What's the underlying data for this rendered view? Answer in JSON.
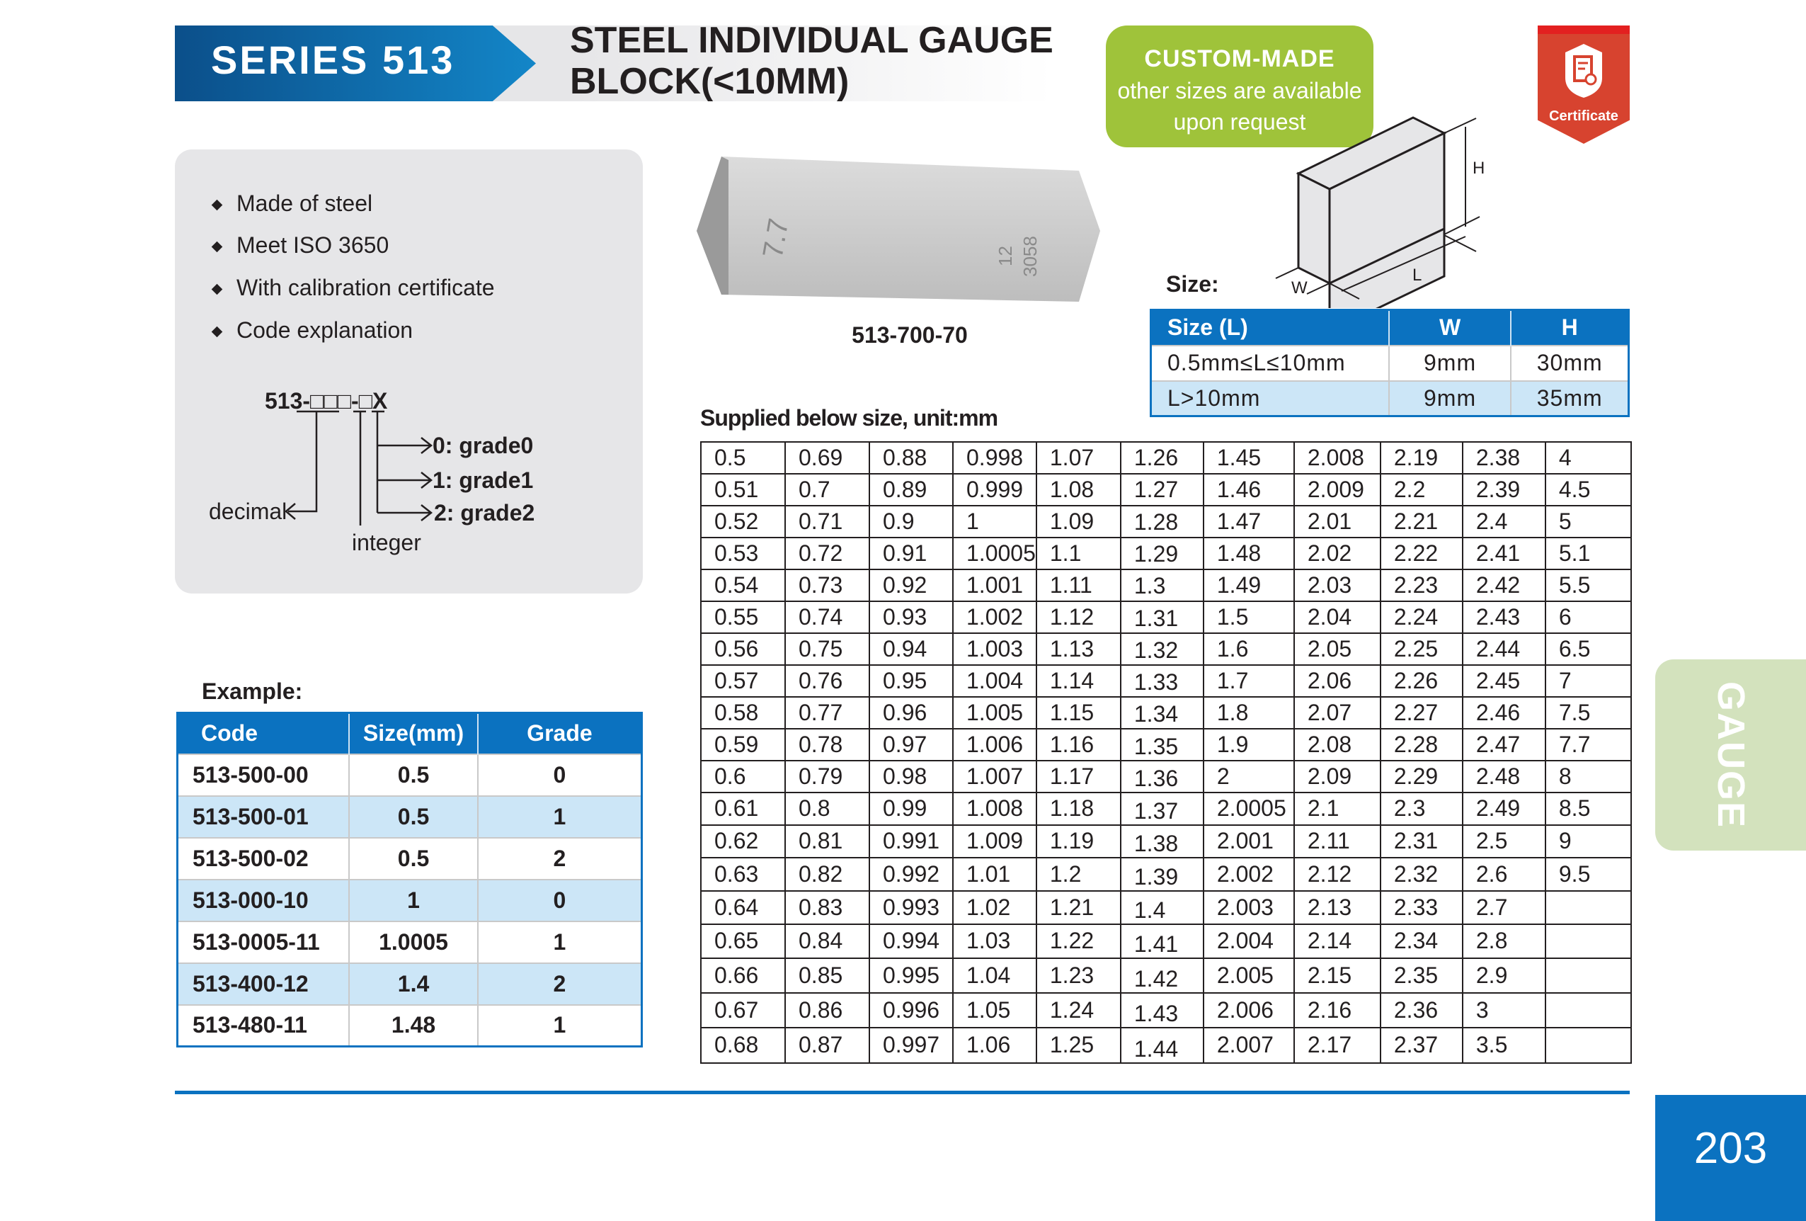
{
  "header": {
    "series": "SERIES 513",
    "title_line1": "STEEL INDIVIDUAL GAUGE",
    "title_line2": "BLOCK(<10MM)",
    "custom_title": "CUSTOM-MADE",
    "custom_line1": "other sizes are available",
    "custom_line2": "upon request",
    "certificate_label": "Certificate"
  },
  "features": {
    "items": [
      "Made of steel",
      "Meet ISO 3650",
      "With calibration certificate",
      "Code explanation"
    ],
    "code": {
      "prefix": "513-",
      "boxes3": "□□□",
      "dash": "-",
      "box1": "□",
      "x": "X",
      "decimal": "decimal",
      "integer": "integer",
      "grades": [
        "0: grade0",
        "1: grade1",
        "2: grade2"
      ]
    }
  },
  "photo": {
    "caption": "513-700-70",
    "engraving_1": "7.7",
    "engraving_2": "12",
    "engraving_3": "3058"
  },
  "size": {
    "label": "Size:",
    "dims": {
      "w": "W",
      "l": "L",
      "h": "H"
    },
    "headers": [
      "Size (L)",
      "W",
      "H"
    ],
    "rows": [
      [
        "0.5mm≤L≤10mm",
        "9mm",
        "30mm"
      ],
      [
        "L>10mm",
        "9mm",
        "35mm"
      ]
    ]
  },
  "supplied": {
    "label": "Supplied below size, unit:mm",
    "rows": [
      [
        "0.5",
        "0.69",
        "0.88",
        "0.998",
        "1.07",
        "1.26",
        "1.45",
        "2.008",
        "2.19",
        "2.38",
        "4"
      ],
      [
        "0.51",
        "0.7",
        "0.89",
        "0.999",
        "1.08",
        "1.27",
        "1.46",
        "2.009",
        "2.2",
        "2.39",
        "4.5"
      ],
      [
        "0.52",
        "0.71",
        "0.9",
        "1",
        "1.09",
        "1.28",
        "1.47",
        "2.01",
        "2.21",
        "2.4",
        "5"
      ],
      [
        "0.53",
        "0.72",
        "0.91",
        "1.0005",
        "1.1",
        "1.29",
        "1.48",
        "2.02",
        "2.22",
        "2.41",
        "5.1"
      ],
      [
        "0.54",
        "0.73",
        "0.92",
        "1.001",
        "1.11",
        "1.3",
        "1.49",
        "2.03",
        "2.23",
        "2.42",
        "5.5"
      ],
      [
        "0.55",
        "0.74",
        "0.93",
        "1.002",
        "1.12",
        "1.31",
        "1.5",
        "2.04",
        "2.24",
        "2.43",
        "6"
      ],
      [
        "0.56",
        "0.75",
        "0.94",
        "1.003",
        "1.13",
        "1.32",
        "1.6",
        "2.05",
        "2.25",
        "2.44",
        "6.5"
      ],
      [
        "0.57",
        "0.76",
        "0.95",
        "1.004",
        "1.14",
        "1.33",
        "1.7",
        "2.06",
        "2.26",
        "2.45",
        "7"
      ],
      [
        "0.58",
        "0.77",
        "0.96",
        "1.005",
        "1.15",
        "1.34",
        "1.8",
        "2.07",
        "2.27",
        "2.46",
        "7.5"
      ],
      [
        "0.59",
        "0.78",
        "0.97",
        "1.006",
        "1.16",
        "1.35",
        "1.9",
        "2.08",
        "2.28",
        "2.47",
        "7.7"
      ],
      [
        "0.6",
        "0.79",
        "0.98",
        "1.007",
        "1.17",
        "1.36",
        "2",
        "2.09",
        "2.29",
        "2.48",
        "8"
      ],
      [
        "0.61",
        "0.8",
        "0.99",
        "1.008",
        "1.18",
        "1.37",
        "2.0005",
        "2.1",
        "2.3",
        "2.49",
        "8.5"
      ],
      [
        "0.62",
        "0.81",
        "0.991",
        "1.009",
        "1.19",
        "1.38",
        "2.001",
        "2.11",
        "2.31",
        "2.5",
        "9"
      ],
      [
        "0.63",
        "0.82",
        "0.992",
        "1.01",
        "1.2",
        "1.39",
        "2.002",
        "2.12",
        "2.32",
        "2.6",
        "9.5"
      ],
      [
        "0.64",
        "0.83",
        "0.993",
        "1.02",
        "1.21",
        "1.4",
        "2.003",
        "2.13",
        "2.33",
        "2.7",
        ""
      ],
      [
        "0.65",
        "0.84",
        "0.994",
        "1.03",
        "1.22",
        "1.41",
        "2.004",
        "2.14",
        "2.34",
        "2.8",
        ""
      ],
      [
        "0.66",
        "0.85",
        "0.995",
        "1.04",
        "1.23",
        "1.42",
        "2.005",
        "2.15",
        "2.35",
        "2.9",
        ""
      ],
      [
        "0.67",
        "0.86",
        "0.996",
        "1.05",
        "1.24",
        "1.43",
        "2.006",
        "2.16",
        "2.36",
        "3",
        ""
      ],
      [
        "0.68",
        "0.87",
        "0.997",
        "1.06",
        "1.25",
        "1.44",
        "2.007",
        "2.17",
        "2.37",
        "3.5",
        ""
      ]
    ]
  },
  "example": {
    "label": "Example:",
    "headers": [
      "Code",
      "Size(mm)",
      "Grade"
    ],
    "rows": [
      [
        "513-500-00",
        "0.5",
        "0"
      ],
      [
        "513-500-01",
        "0.5",
        "1"
      ],
      [
        "513-500-02",
        "0.5",
        "2"
      ],
      [
        "513-000-10",
        "1",
        "0"
      ],
      [
        "513-0005-11",
        "1.0005",
        "1"
      ],
      [
        "513-400-12",
        "1.4",
        "2"
      ],
      [
        "513-480-11",
        "1.48",
        "1"
      ]
    ]
  },
  "side_tab": "GAUGE",
  "page_number": "203",
  "colors": {
    "brand_blue": "#0b72c0",
    "green": "#9fc33a",
    "cert_red": "#d7432f",
    "row_alt": "#cce6f7"
  }
}
